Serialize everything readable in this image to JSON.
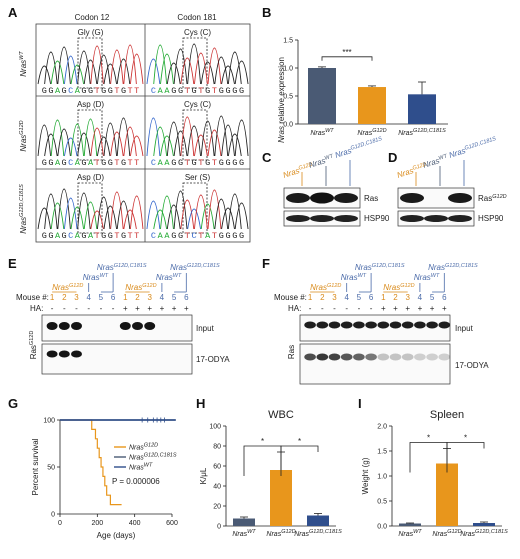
{
  "colors": {
    "wt": "#4a5a74",
    "g12d": "#e8961c",
    "g12d_c181s": "#2f4e8c",
    "orange_label": "#d98a1a",
    "blue_label": "#4a6aa8",
    "traceA": "#22aa33",
    "traceC": "#3366cc",
    "traceG": "#222222",
    "traceT": "#cc3333",
    "tracePurple": "#7a3a9a"
  },
  "panels": {
    "A": "A",
    "B": "B",
    "C": "C",
    "D": "D",
    "E": "E",
    "F": "F",
    "G": "G",
    "H": "H",
    "I": "I"
  },
  "panel_a": {
    "codon12": "Codon 12",
    "codon181": "Codon 181",
    "rows": [
      {
        "genotype_base": "Nras",
        "genotype_sup": "WT",
        "aa12": "Gly (G)",
        "aa181": "Cys (C)",
        "seq12": "GGAGCAGGTGGTGTT",
        "seq181": "CAAGGTGTGTGGGG"
      },
      {
        "genotype_base": "Nras",
        "genotype_sup": "G12D",
        "aa12": "Asp (D)",
        "aa181": "Cys (C)",
        "seq12": "GGAGCAGATGGTGTT",
        "seq181": "CAAGGTGTGTGGGG"
      },
      {
        "genotype_base": "Nras",
        "genotype_sup": "G12D,C181S",
        "aa12": "Asp (D)",
        "aa181": "Ser (S)",
        "seq12": "GGAGCAGATGGTGTT",
        "seq181": "CAAGGTCTATGGGG"
      }
    ]
  },
  "panel_b": {
    "ylabel_base": "Nras",
    "ylabel_rest": " relative expression",
    "significance": "***",
    "ticks": [
      "0.0",
      "0.5",
      "1.0",
      "1.5"
    ]
  },
  "panel_c": {
    "band1": "Ras",
    "band2": "HSP90"
  },
  "panel_d": {
    "band1_base": "Ras",
    "band1_sup": "G12D",
    "band2": "HSP90"
  },
  "panel_e": {
    "mouse_label": "Mouse #:",
    "ha_label": "HA:",
    "mouse_numbers": [
      "1",
      "2",
      "3",
      "4",
      "5",
      "6",
      "1",
      "2",
      "3",
      "4",
      "5",
      "6"
    ],
    "ha_values": [
      "-",
      "-",
      "-",
      "-",
      "-",
      "-",
      "+",
      "+",
      "+",
      "+",
      "+",
      "+"
    ],
    "input": "Input",
    "odya": "17-ODYA",
    "side_base": "Ras",
    "side_sup": "G12D"
  },
  "panel_f": {
    "mouse_label": "Mouse #:",
    "ha_label": "HA:",
    "mouse_numbers": [
      "1",
      "2",
      "3",
      "4",
      "5",
      "6",
      "1",
      "2",
      "3",
      "4",
      "5",
      "6"
    ],
    "ha_values": [
      "-",
      "-",
      "-",
      "-",
      "-",
      "-",
      "+",
      "+",
      "+",
      "+",
      "+",
      "+"
    ],
    "input": "Input",
    "odya": "17-ODYA",
    "side": "Ras"
  },
  "genotype_labels": {
    "wt_base": "Nras",
    "wt_sup": "WT",
    "g12d_base": "Nras",
    "g12d_sup": "G12D",
    "dual_base": "Nras",
    "dual_sup": "G12D,C181S"
  },
  "chart_data": [
    {
      "panel": "B",
      "type": "bar",
      "categories": [
        "NrasWT",
        "NrasG12D",
        "NrasG12D,C181S"
      ],
      "values": [
        1.0,
        0.66,
        0.53
      ],
      "errors": [
        0.02,
        0.02,
        0.22
      ],
      "ylabel": "Nras relative expression",
      "ylim": [
        0,
        1.5
      ],
      "significance": [
        {
          "between": [
            0,
            1
          ],
          "label": "***"
        }
      ]
    },
    {
      "panel": "G",
      "type": "line",
      "xlabel": "Age (days)",
      "ylabel": "Percent survival",
      "xlim": [
        0,
        600
      ],
      "ylim": [
        0,
        100
      ],
      "x_ticks": [
        "0",
        "200",
        "400",
        "600"
      ],
      "y_ticks": [
        "0",
        "50",
        "100"
      ],
      "annotation": "P = 0.000006",
      "series": [
        {
          "name": "NrasG12D",
          "x": [
            0,
            150,
            170,
            190,
            200,
            210,
            220,
            230,
            240,
            250,
            260,
            270,
            290,
            310,
            330
          ],
          "y": [
            100,
            100,
            90,
            80,
            70,
            60,
            50,
            40,
            30,
            20,
            20,
            10,
            10,
            10,
            10
          ]
        },
        {
          "name": "NrasG12D,C181S",
          "x": [
            0,
            620
          ],
          "y": [
            100,
            100
          ]
        },
        {
          "name": "NrasWT",
          "x": [
            0,
            620
          ],
          "y": [
            100,
            100
          ]
        }
      ]
    },
    {
      "panel": "H",
      "type": "bar",
      "title": "WBC",
      "ylabel": "K/μL",
      "categories": [
        "NrasWT",
        "NrasG12D",
        "NrasG12D,C181S"
      ],
      "values": [
        7.5,
        56,
        10.5
      ],
      "errors": [
        1.5,
        18,
        2
      ],
      "ylim": [
        0,
        100
      ],
      "y_ticks": [
        "0",
        "20",
        "40",
        "60",
        "80",
        "100"
      ],
      "significance": [
        {
          "between": [
            0,
            1
          ],
          "label": "*"
        },
        {
          "between": [
            1,
            2
          ],
          "label": "*"
        }
      ]
    },
    {
      "panel": "I",
      "type": "bar",
      "title": "Spleen",
      "ylabel": "Weight (g)",
      "categories": [
        "NrasWT",
        "NrasG12D",
        "NrasG12D,C181S"
      ],
      "values": [
        0.05,
        1.25,
        0.06
      ],
      "errors": [
        0.01,
        0.3,
        0.02
      ],
      "ylim": [
        0,
        2.0
      ],
      "y_ticks": [
        "0.0",
        "0.5",
        "1.0",
        "1.5",
        "2.0"
      ],
      "significance": [
        {
          "between": [
            0,
            1
          ],
          "label": "*"
        },
        {
          "between": [
            1,
            2
          ],
          "label": "*"
        }
      ]
    }
  ]
}
